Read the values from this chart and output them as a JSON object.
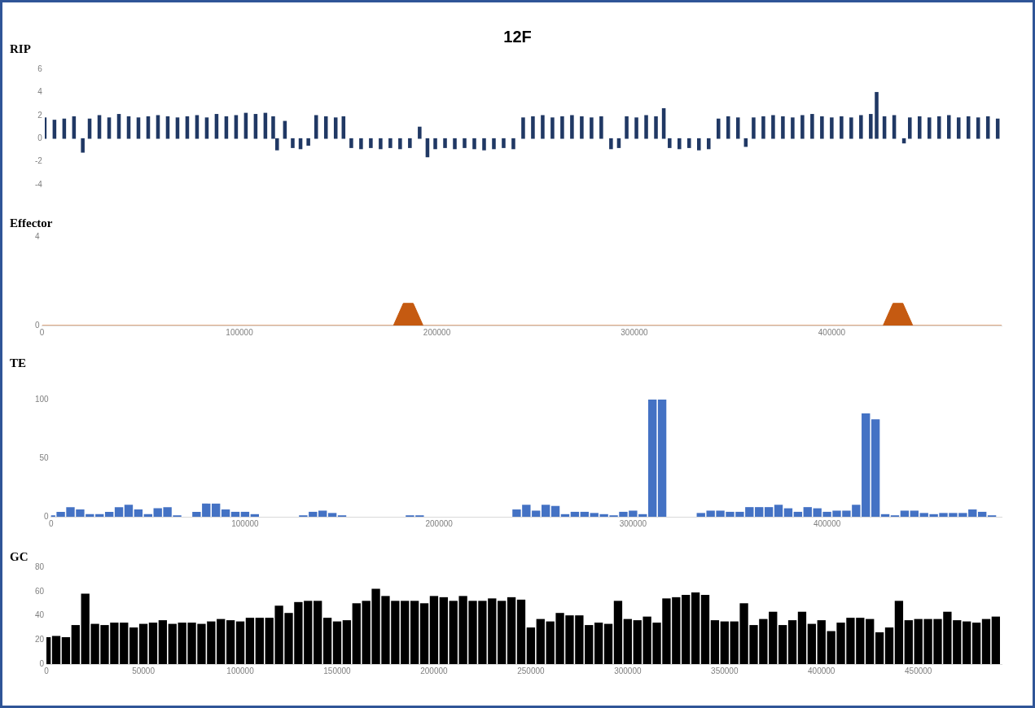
{
  "chart_data": [
    {
      "type": "bar",
      "title": "12F",
      "ylabel": "RIP",
      "xlim": [
        0,
        490000
      ],
      "ylim": [
        -4,
        6
      ],
      "yticks": [
        -4,
        -2,
        0,
        2,
        4,
        6
      ],
      "tick_labels": "y",
      "series": [
        {
          "color": "#203864",
          "x": [
            0,
            5000,
            10000,
            15000,
            19500,
            23000,
            28000,
            33000,
            38000,
            43000,
            48000,
            53000,
            58000,
            63000,
            68000,
            73000,
            78000,
            83000,
            88000,
            93000,
            98000,
            103000,
            108000,
            113000,
            117000,
            119000,
            123000,
            127000,
            131000,
            135000,
            139000,
            144000,
            149000,
            153000,
            157000,
            162000,
            167000,
            172000,
            177000,
            182000,
            187000,
            192000,
            196000,
            200000,
            205000,
            210000,
            215000,
            220000,
            225000,
            230000,
            235000,
            240000,
            245000,
            250000,
            255000,
            260000,
            265000,
            270000,
            275000,
            280000,
            285000,
            290000,
            294000,
            298000,
            303000,
            308000,
            313000,
            317000,
            320000,
            325000,
            330000,
            335000,
            340000,
            345000,
            350000,
            355000,
            359000,
            363000,
            368000,
            373000,
            378000,
            383000,
            388000,
            393000,
            398000,
            403000,
            408000,
            413000,
            418000,
            423000,
            426000,
            430000,
            435000,
            440000,
            443000,
            448000,
            453000,
            458000,
            463000,
            468000,
            473000,
            478000,
            483000,
            488000
          ],
          "values": [
            1.8,
            1.6,
            1.7,
            1.9,
            -1.2,
            1.7,
            2.0,
            1.8,
            2.1,
            1.9,
            1.8,
            1.9,
            2.0,
            1.9,
            1.8,
            1.9,
            2.0,
            1.8,
            2.1,
            1.9,
            2.0,
            2.2,
            2.1,
            2.2,
            1.9,
            -1.0,
            1.5,
            -0.8,
            -0.9,
            -0.6,
            2.0,
            1.9,
            1.8,
            1.9,
            -0.8,
            -0.9,
            -0.8,
            -0.9,
            -0.8,
            -0.9,
            -0.8,
            1.0,
            -1.6,
            -0.9,
            -0.8,
            -0.9,
            -0.8,
            -0.9,
            -1.0,
            -0.9,
            -0.8,
            -0.9,
            1.8,
            1.9,
            2.0,
            1.8,
            1.9,
            2.0,
            1.9,
            1.8,
            1.9,
            -0.9,
            -0.8,
            1.9,
            1.8,
            2.0,
            1.9,
            2.6,
            -0.8,
            -0.9,
            -0.8,
            -1.0,
            -0.9,
            1.7,
            1.9,
            1.8,
            -0.7,
            1.8,
            1.9,
            2.0,
            1.9,
            1.8,
            2.0,
            2.1,
            1.9,
            1.8,
            1.9,
            1.8,
            2.0,
            2.1,
            4.0,
            1.9,
            2.0,
            -0.4,
            1.8,
            1.9,
            1.8,
            1.9,
            2.0,
            1.8,
            1.9,
            1.8,
            1.9,
            1.7
          ]
        }
      ]
    },
    {
      "type": "area",
      "ylabel": "Effector",
      "xlim": [
        0,
        486000
      ],
      "xticks": [
        0,
        100000,
        200000,
        300000,
        400000
      ],
      "ylim": [
        0,
        4
      ],
      "yticks": [
        0,
        4
      ],
      "series": [
        {
          "color": "#c55a11",
          "x": [
            0,
            178000,
            183000,
            188000,
            193000,
            426000,
            431000,
            436000,
            441000,
            486000
          ],
          "values": [
            0,
            0,
            1,
            1,
            0,
            0,
            1,
            1,
            0,
            0
          ]
        }
      ]
    },
    {
      "type": "bar",
      "ylabel": "TE",
      "xlim": [
        0,
        490000
      ],
      "xticks": [
        0,
        100000,
        200000,
        300000,
        400000
      ],
      "ylim": [
        0,
        100
      ],
      "yticks": [
        0,
        50,
        100
      ],
      "series": [
        {
          "color": "#4472c4",
          "x": [
            0,
            5000,
            10000,
            15000,
            20000,
            25000,
            30000,
            35000,
            40000,
            45000,
            50000,
            55000,
            60000,
            65000,
            75000,
            80000,
            85000,
            90000,
            95000,
            100000,
            105000,
            130000,
            135000,
            140000,
            145000,
            150000,
            185000,
            190000,
            240000,
            245000,
            250000,
            255000,
            260000,
            265000,
            270000,
            275000,
            280000,
            285000,
            290000,
            295000,
            300000,
            305000,
            310000,
            315000,
            335000,
            340000,
            345000,
            350000,
            355000,
            360000,
            365000,
            370000,
            375000,
            380000,
            385000,
            390000,
            395000,
            400000,
            405000,
            410000,
            415000,
            420000,
            425000,
            430000,
            435000,
            440000,
            445000,
            450000,
            455000,
            460000,
            465000,
            470000,
            475000,
            480000,
            485000
          ],
          "values": [
            1,
            4,
            8,
            6,
            2,
            2,
            4,
            8,
            10,
            6,
            2,
            7,
            8,
            1,
            4,
            11,
            11,
            6,
            4,
            4,
            2,
            1,
            4,
            5,
            3,
            1,
            1,
            1,
            6,
            10,
            5,
            10,
            9,
            2,
            4,
            4,
            3,
            2,
            1,
            4,
            5,
            2,
            100,
            100,
            3,
            5,
            5,
            4,
            4,
            8,
            8,
            8,
            10,
            7,
            4,
            8,
            7,
            4,
            5,
            5,
            10,
            88,
            83,
            2,
            1,
            5,
            5,
            3,
            2,
            3,
            3,
            3,
            6,
            4,
            1
          ]
        }
      ]
    },
    {
      "type": "bar",
      "ylabel": "GC",
      "xlim": [
        0,
        493000
      ],
      "xticks": [
        0,
        50000,
        100000,
        150000,
        200000,
        250000,
        300000,
        350000,
        400000,
        450000
      ],
      "ylim": [
        0,
        80
      ],
      "yticks": [
        0,
        20,
        40,
        60,
        80
      ],
      "series": [
        {
          "color": "#000000",
          "x": [
            0,
            5000,
            10000,
            15000,
            20000,
            25000,
            30000,
            35000,
            40000,
            45000,
            50000,
            55000,
            60000,
            65000,
            70000,
            75000,
            80000,
            85000,
            90000,
            95000,
            100000,
            105000,
            110000,
            115000,
            120000,
            125000,
            130000,
            135000,
            140000,
            145000,
            150000,
            155000,
            160000,
            165000,
            170000,
            175000,
            180000,
            185000,
            190000,
            195000,
            200000,
            205000,
            210000,
            215000,
            220000,
            225000,
            230000,
            235000,
            240000,
            245000,
            250000,
            255000,
            260000,
            265000,
            270000,
            275000,
            280000,
            285000,
            290000,
            295000,
            300000,
            305000,
            310000,
            315000,
            320000,
            325000,
            330000,
            335000,
            340000,
            345000,
            350000,
            355000,
            360000,
            365000,
            370000,
            375000,
            380000,
            385000,
            390000,
            395000,
            400000,
            405000,
            410000,
            415000,
            420000,
            425000,
            430000,
            435000,
            440000,
            445000,
            450000,
            455000,
            460000,
            465000,
            470000,
            475000,
            480000,
            485000,
            490000
          ],
          "values": [
            22,
            23,
            22,
            32,
            58,
            33,
            32,
            34,
            34,
            30,
            33,
            34,
            36,
            33,
            34,
            34,
            33,
            35,
            37,
            36,
            35,
            38,
            38,
            38,
            48,
            42,
            51,
            52,
            52,
            38,
            35,
            36,
            50,
            52,
            62,
            56,
            52,
            52,
            52,
            50,
            56,
            55,
            52,
            56,
            52,
            52,
            54,
            52,
            55,
            53,
            30,
            37,
            35,
            42,
            40,
            40,
            32,
            34,
            33,
            52,
            37,
            36,
            39,
            34,
            54,
            55,
            57,
            59,
            57,
            36,
            35,
            35,
            50,
            32,
            37,
            43,
            32,
            36,
            43,
            33,
            36,
            27,
            34,
            38,
            38,
            37,
            26,
            30,
            52,
            36,
            37,
            37,
            37,
            43,
            36,
            35,
            34,
            37,
            39
          ]
        }
      ]
    }
  ]
}
